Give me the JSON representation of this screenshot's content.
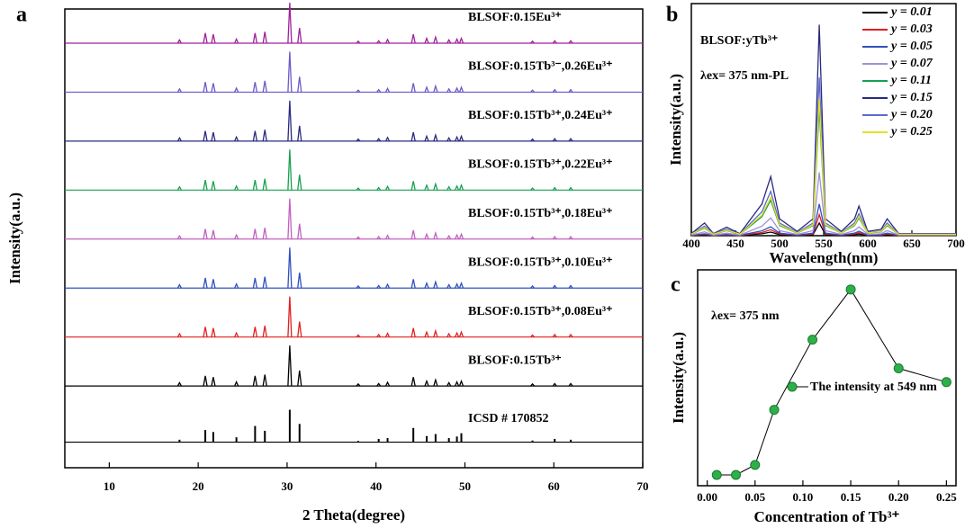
{
  "chart_data": [
    {
      "type": "waterfall",
      "panel": "a",
      "x_label": "2 Theta(degree)",
      "y_label": "Intensity(a.u.)",
      "xlim": [
        5,
        70
      ],
      "xticks": [
        10,
        20,
        30,
        40,
        50,
        60,
        70
      ],
      "x": [
        17.9,
        20.8,
        21.7,
        24.3,
        26.4,
        27.5,
        30.3,
        31.4,
        38,
        40.3,
        41.3,
        44.2,
        45.7,
        46.7,
        48.2,
        49.1,
        49.6,
        57.6,
        60.1,
        61.9
      ],
      "series": [
        {
          "name": "BLSOF:0.15Eu³⁺",
          "color": "#a0209c",
          "values": [
            8,
            25,
            22,
            10,
            25,
            28,
            100,
            38,
            5,
            6,
            9,
            22,
            12,
            15,
            8,
            10,
            12,
            5,
            6,
            6
          ]
        },
        {
          "name": "BLSOF:0.15Tb³⁻,0.26Eu³⁺",
          "color": "#6a5ac8",
          "values": [
            8,
            25,
            22,
            10,
            25,
            28,
            100,
            38,
            5,
            6,
            9,
            22,
            12,
            15,
            8,
            10,
            12,
            5,
            6,
            6
          ]
        },
        {
          "name": "BLSOF:0.15Tb³⁺,0.24Eu³⁺",
          "color": "#2a2a80",
          "values": [
            8,
            25,
            22,
            10,
            25,
            28,
            100,
            38,
            5,
            6,
            9,
            22,
            12,
            15,
            8,
            10,
            12,
            5,
            6,
            6
          ]
        },
        {
          "name": "BLSOF:0.15Tb³⁺,0.22Eu³⁺",
          "color": "#18a050",
          "values": [
            8,
            25,
            22,
            10,
            25,
            28,
            100,
            38,
            5,
            6,
            9,
            22,
            12,
            15,
            8,
            10,
            12,
            5,
            6,
            6
          ]
        },
        {
          "name": "BLSOF:0.15Tb³⁺,0.18Eu³⁺",
          "color": "#c060c0",
          "values": [
            8,
            25,
            22,
            10,
            25,
            28,
            100,
            38,
            5,
            6,
            9,
            22,
            12,
            15,
            8,
            10,
            12,
            5,
            6,
            6
          ]
        },
        {
          "name": "BLSOF:0.15Tb³⁺,0.10Eu³⁺",
          "color": "#3050c0",
          "values": [
            8,
            25,
            22,
            10,
            25,
            28,
            100,
            38,
            5,
            6,
            9,
            22,
            12,
            15,
            8,
            10,
            12,
            5,
            6,
            6
          ]
        },
        {
          "name": "BLSOF:0.15Tb³⁺,0.08Eu³⁺",
          "color": "#e02020",
          "values": [
            8,
            25,
            22,
            10,
            25,
            28,
            100,
            38,
            5,
            6,
            9,
            22,
            12,
            15,
            8,
            10,
            12,
            5,
            6,
            6
          ]
        },
        {
          "name": "BLSOF:0.15Tb³⁺",
          "color": "#000000",
          "values": [
            8,
            25,
            22,
            10,
            25,
            28,
            100,
            38,
            5,
            6,
            9,
            22,
            12,
            15,
            8,
            10,
            12,
            5,
            6,
            6
          ]
        },
        {
          "name": "ICSD # 170852",
          "color": "#000000",
          "sticks": true,
          "values": [
            6,
            30,
            25,
            12,
            40,
            28,
            80,
            45,
            3,
            8,
            10,
            35,
            15,
            20,
            10,
            14,
            22,
            4,
            8,
            6
          ]
        }
      ]
    },
    {
      "type": "line",
      "panel": "b",
      "x_label": "Wavelength(nm)",
      "y_label": "Intensity(a.u.)",
      "annotations": [
        "BLSOF:yTb³⁺",
        "λex= 375 nm-PL"
      ],
      "xlim": [
        400,
        700
      ],
      "xticks": [
        400,
        450,
        500,
        550,
        600,
        650,
        700
      ],
      "ylim": [
        0,
        110
      ],
      "x": [
        400,
        415,
        425,
        440,
        455,
        480,
        490,
        500,
        520,
        538,
        545,
        552,
        570,
        585,
        590,
        600,
        615,
        622,
        635,
        700
      ],
      "series": [
        {
          "name": "y = 0.01",
          "color": "#000000",
          "values": [
            0.1,
            0.4,
            0.1,
            0.2,
            0.1,
            0.9,
            1.7,
            0.5,
            0.1,
            0.5,
            6,
            0.5,
            0.1,
            0.5,
            0.8,
            0.1,
            0.2,
            0.5,
            0.1,
            0.1
          ]
        },
        {
          "name": "y = 0.03",
          "color": "#e02020",
          "values": [
            0.1,
            0.6,
            0.1,
            0.4,
            0.1,
            1.5,
            2.8,
            0.8,
            0.2,
            0.8,
            10,
            0.8,
            0.2,
            0.8,
            1.4,
            0.2,
            0.3,
            0.8,
            0.1,
            0.1
          ]
        },
        {
          "name": "y = 0.05",
          "color": "#3050c0",
          "values": [
            0.2,
            0.9,
            0.2,
            0.6,
            0.2,
            2.3,
            4.2,
            1.2,
            0.3,
            1.2,
            15,
            1.2,
            0.3,
            1.2,
            2.1,
            0.3,
            0.5,
            1.2,
            0.2,
            0.2
          ]
        },
        {
          "name": "y = 0.07",
          "color": "#a090d8",
          "values": [
            0.3,
            1.8,
            0.3,
            1.2,
            0.3,
            4.5,
            8.4,
            2.4,
            0.6,
            2.4,
            30,
            2.4,
            0.6,
            2.4,
            4.2,
            0.6,
            0.9,
            2.4,
            0.3,
            0.3
          ]
        },
        {
          "name": "y = 0.11",
          "color": "#18a050",
          "values": [
            0.6,
            3.6,
            0.6,
            2.4,
            0.6,
            9,
            16.8,
            4.8,
            1.2,
            4.8,
            60,
            4.8,
            1.2,
            4.8,
            8.4,
            1.2,
            1.8,
            4.8,
            0.6,
            0.6
          ]
        },
        {
          "name": "y = 0.15",
          "color": "#2a2a80",
          "values": [
            1,
            6,
            1,
            4,
            1,
            15,
            28,
            8,
            2,
            8,
            100,
            8,
            2,
            8,
            14,
            2,
            3,
            8,
            1,
            1
          ]
        },
        {
          "name": "y = 0.20",
          "color": "#5a6ad0",
          "values": [
            0.8,
            4.5,
            0.8,
            3,
            0.8,
            11.3,
            21,
            6,
            1.5,
            6,
            75,
            6,
            1.5,
            6,
            10.5,
            1.5,
            2.3,
            6,
            0.8,
            0.8
          ]
        },
        {
          "name": "y = 0.25",
          "color": "#e8e020",
          "values": [
            0.7,
            3.9,
            0.7,
            2.6,
            0.7,
            9.8,
            18.2,
            5.2,
            1.3,
            5.2,
            65,
            5.2,
            1.3,
            5.2,
            9.1,
            1.3,
            2,
            5.2,
            0.7,
            0.7
          ]
        }
      ]
    },
    {
      "type": "scatter",
      "panel": "c",
      "x_label": "Concentration of Tb³⁺",
      "y_label": "Intensity(a.u.)",
      "annotations": [
        "λex= 375 nm"
      ],
      "xlim": [
        -0.01,
        0.26
      ],
      "xticks": [
        {
          "value": 0,
          "label": "0.00"
        },
        0.05,
        {
          "value": 0.1,
          "label": "0.10"
        },
        0.15,
        {
          "value": 0.2,
          "label": "0.20"
        },
        0.25
      ],
      "ylim": [
        0,
        110
      ],
      "connect": true,
      "x": [
        0.01,
        0.03,
        0.05,
        0.07,
        0.11,
        0.15,
        0.2,
        0.25
      ],
      "series": [
        {
          "name": "The intensity at 549 nm",
          "color": "#2db04a",
          "values": [
            5.5,
            5.5,
            10.6,
            38.7,
            74.4,
            100,
            59.8,
            52.8
          ]
        }
      ]
    }
  ]
}
